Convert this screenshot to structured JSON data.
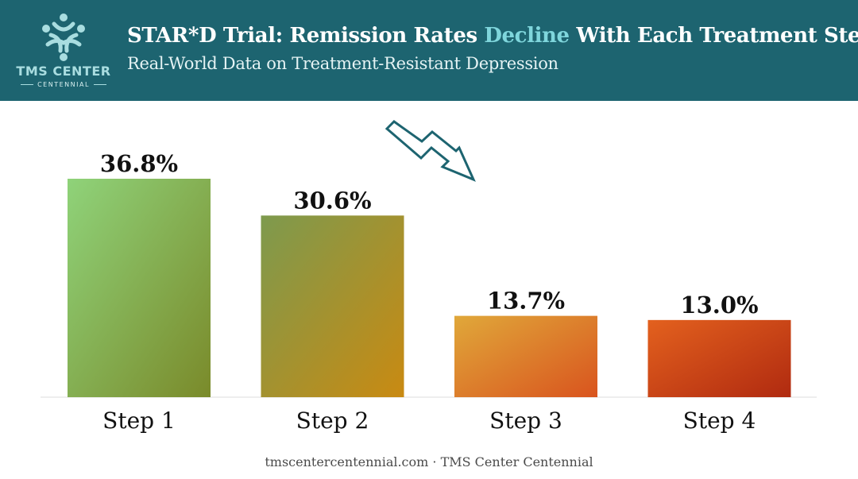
{
  "header": {
    "title_part1": "STAR*D Trial: Remission Rates ",
    "title_accent": "Decline",
    "title_part2": " With Each Treatment Step",
    "subtitle": "Real-World Data on Treatment-Resistant Depression"
  },
  "logo": {
    "name": "TMS CENTER",
    "sub": "CENTENNIAL",
    "icon": "stylized-people-circle-icon"
  },
  "colors": {
    "header_bg": "#1d6470",
    "title_accent": "#7fd6dc",
    "bar_gradients": [
      [
        "#8fd37a",
        "#7a8a2a"
      ],
      [
        "#7d9a4e",
        "#c98a12"
      ],
      [
        "#e0a83a",
        "#d9541e"
      ],
      [
        "#e3611e",
        "#b02a10"
      ]
    ]
  },
  "decor": {
    "arrow_icon": "zigzag-down-arrow-icon"
  },
  "chart_data": {
    "type": "bar",
    "categories": [
      "Step 1",
      "Step 2",
      "Step 3",
      "Step 4"
    ],
    "values": [
      36.8,
      30.6,
      13.7,
      13.0
    ],
    "labels": [
      "36.8%",
      "30.6%",
      "13.7%",
      "13.0%"
    ],
    "title": "STAR*D Trial: Remission Rates Decline With Each Treatment Step",
    "xlabel": "",
    "ylabel": "",
    "ylim": [
      0,
      40
    ],
    "grid": false,
    "legend": "none"
  },
  "footer": {
    "text": "tmscentercentennial.com · TMS Center Centennial"
  }
}
